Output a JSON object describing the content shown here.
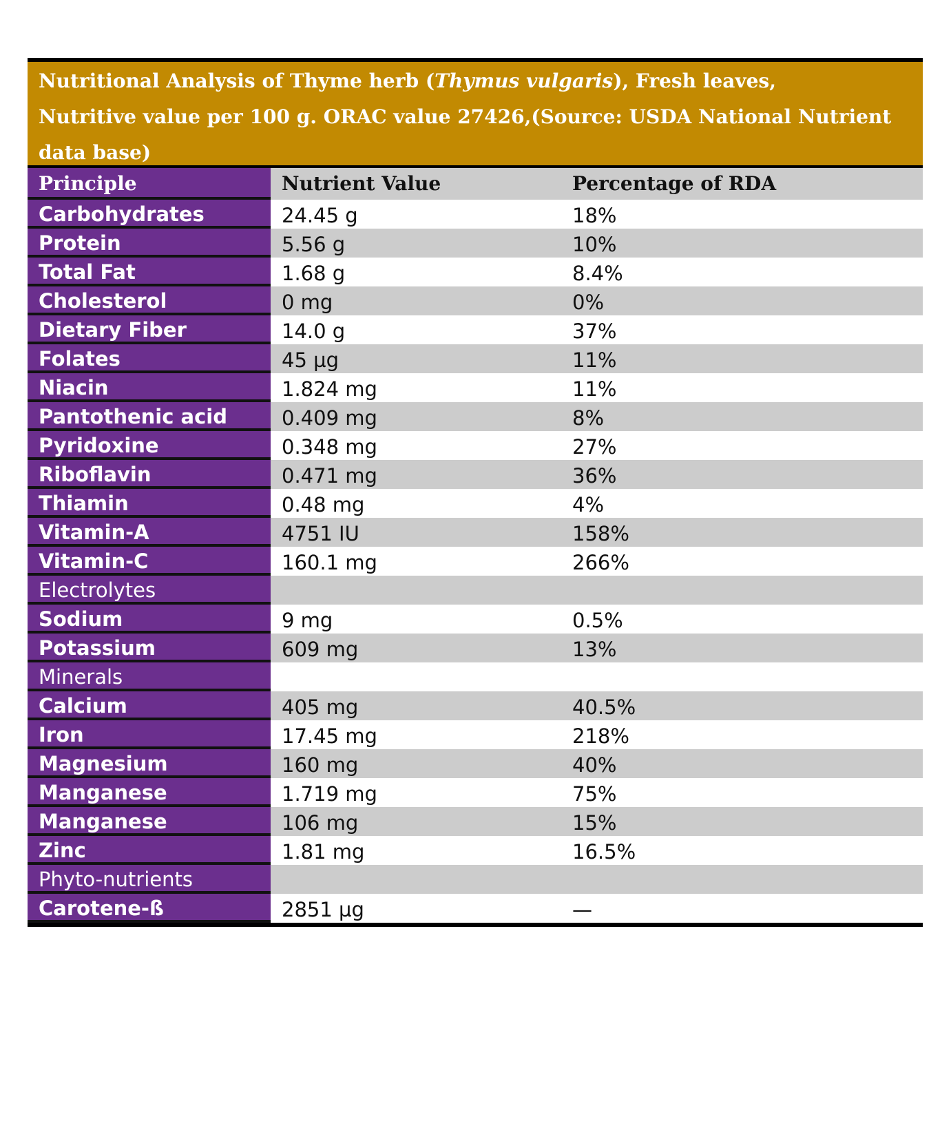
{
  "title": {
    "line1_pre": "Nutritional Analysis of Thyme herb (",
    "line1_italic": "Thymus vulgaris",
    "line1_post": "), Fresh leaves,",
    "line2": "Nutritive value per 100 g. ORAC value 27426,(Source: USDA National Nutrient",
    "line3": "data base)"
  },
  "header": {
    "principle": "Principle",
    "nutrient_value": "Nutrient Value",
    "percentage_rda": "Percentage of RDA"
  },
  "rows": [
    {
      "principle": "Carbohydrates",
      "value": "24.45 g",
      "rda": "18%"
    },
    {
      "principle": "Protein",
      "value": "5.56 g",
      "rda": "10%"
    },
    {
      "principle": "Total Fat",
      "value": "1.68 g",
      "rda": "8.4%"
    },
    {
      "principle": "Cholesterol",
      "value": "0 mg",
      "rda": "0%"
    },
    {
      "principle": "Dietary Fiber",
      "value": "14.0 g",
      "rda": "37%"
    },
    {
      "principle": "Folates",
      "value": "45 µg",
      "rda": "11%"
    },
    {
      "principle": "Niacin",
      "value": "1.824 mg",
      "rda": "11%"
    },
    {
      "principle": "Pantothenic acid",
      "value": "0.409 mg",
      "rda": "8%"
    },
    {
      "principle": "Pyridoxine",
      "value": "0.348 mg",
      "rda": "27%"
    },
    {
      "principle": "Riboflavin",
      "value": "0.471 mg",
      "rda": "36%"
    },
    {
      "principle": "Thiamin",
      "value": "0.48 mg",
      "rda": "4%"
    },
    {
      "principle": "Vitamin-A",
      "value": "4751 IU",
      "rda": "158%"
    },
    {
      "principle": "Vitamin-C",
      "value": "160.1 mg",
      "rda": "266%"
    },
    {
      "principle": "Electrolytes",
      "value": "",
      "rda": "",
      "section": true
    },
    {
      "principle": "Sodium",
      "value": "9 mg",
      "rda": "0.5%"
    },
    {
      "principle": "Potassium",
      "value": "609 mg",
      "rda": "13%"
    },
    {
      "principle": "Minerals",
      "value": "",
      "rda": "",
      "section": true
    },
    {
      "principle": "Calcium",
      "value": "405 mg",
      "rda": "40.5%"
    },
    {
      "principle": "Iron",
      "value": "17.45 mg",
      "rda": "218%"
    },
    {
      "principle": "Magnesium",
      "value": "160 mg",
      "rda": "40%"
    },
    {
      "principle": "Manganese",
      "value": "1.719 mg",
      "rda": "75%"
    },
    {
      "principle": "Manganese",
      "value": "106 mg",
      "rda": "15%"
    },
    {
      "principle": "Zinc",
      "value": "1.81 mg",
      "rda": "16.5%"
    },
    {
      "principle": "Phyto-nutrients",
      "value": "",
      "rda": "",
      "section": true
    },
    {
      "principle": "Carotene-ß",
      "value": "2851 µg",
      "rda": "—"
    }
  ],
  "colors": {
    "title_bg": "#c28a02",
    "principle_bg": "#6b2f8e",
    "shade_bg": "#cccccc"
  }
}
